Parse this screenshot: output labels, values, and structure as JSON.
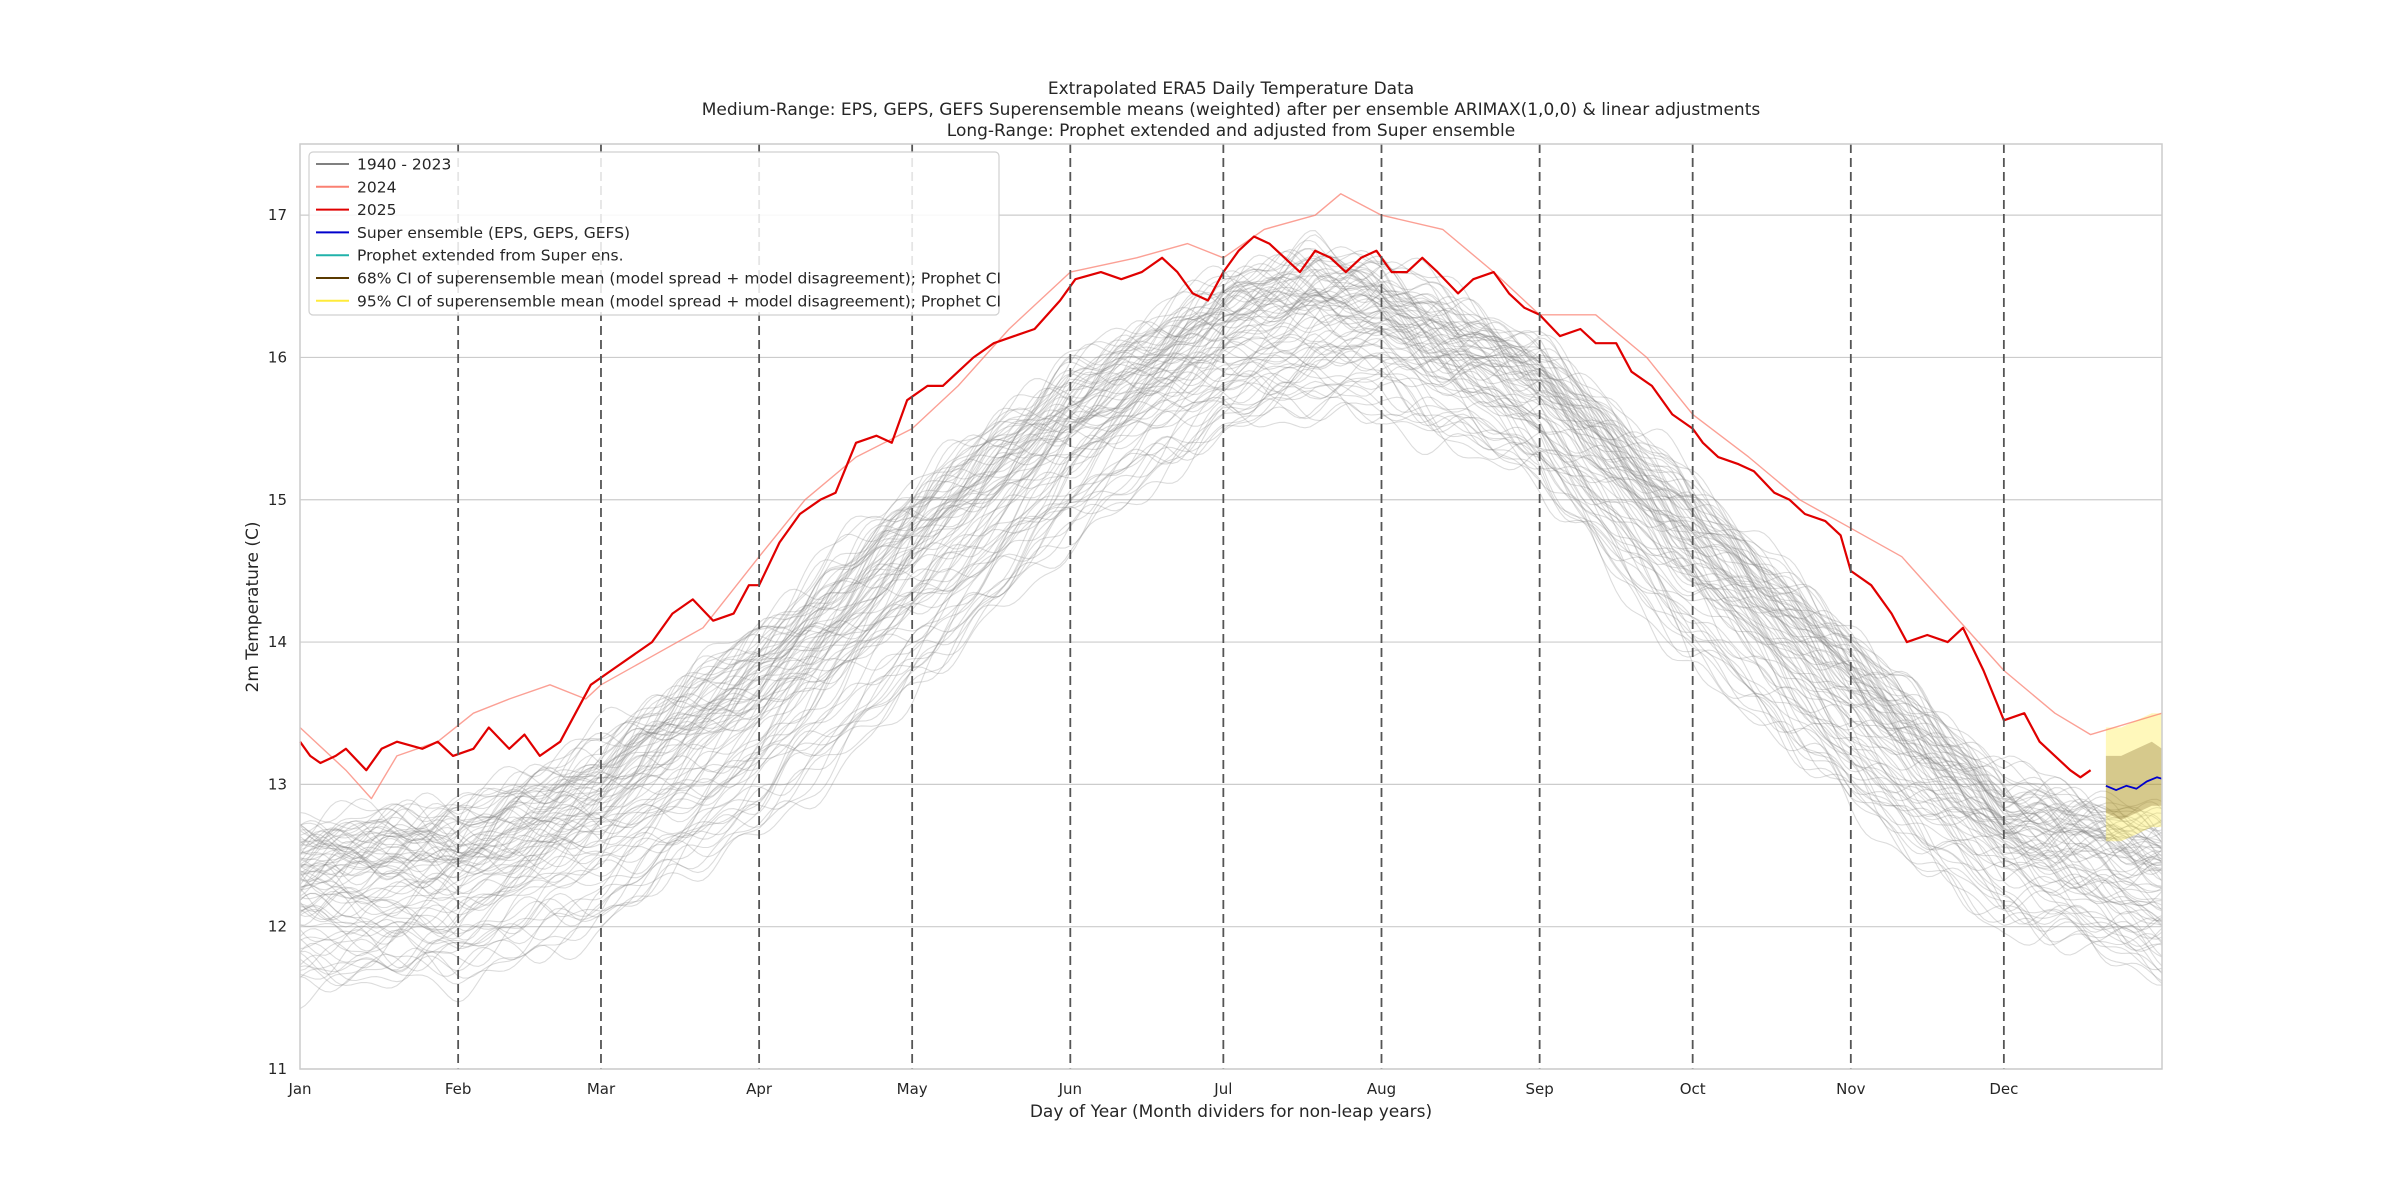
{
  "chart_data": {
    "type": "line",
    "title": [
      "Extrapolated ERA5 Daily Temperature Data",
      "Medium-Range: EPS, GEPS, GEFS Superensemble means (weighted) after per ensemble ARIMAX(1,0,0) & linear adjustments",
      "Long-Range: Prophet extended and adjusted from Super ensemble"
    ],
    "xlabel": "Day of Year (Month dividers for non-leap years)",
    "ylabel": "2m Temperature (C)",
    "xlim": [
      1,
      366
    ],
    "ylim": [
      11,
      17.5
    ],
    "y_ticks": [
      11,
      12,
      13,
      14,
      15,
      16,
      17
    ],
    "x_ticks": [
      {
        "day": 1,
        "label": "Jan"
      },
      {
        "day": 32,
        "label": "Feb"
      },
      {
        "day": 60,
        "label": "Mar"
      },
      {
        "day": 91,
        "label": "Apr"
      },
      {
        "day": 121,
        "label": "May"
      },
      {
        "day": 152,
        "label": "Jun"
      },
      {
        "day": 182,
        "label": "Jul"
      },
      {
        "day": 213,
        "label": "Aug"
      },
      {
        "day": 244,
        "label": "Sep"
      },
      {
        "day": 274,
        "label": "Oct"
      },
      {
        "day": 305,
        "label": "Nov"
      },
      {
        "day": 335,
        "label": "Dec"
      }
    ],
    "month_dividers": [
      32,
      60,
      91,
      121,
      152,
      182,
      213,
      244,
      274,
      305,
      335
    ],
    "grid": "horizontal",
    "legend_position": "top-left",
    "legend": [
      {
        "label": "1940 - 2023",
        "color": "#808080"
      },
      {
        "label": "2024",
        "color": "#fa8072"
      },
      {
        "label": "2025",
        "color": "#e00000"
      },
      {
        "label": "Super ensemble (EPS, GEPS, GEFS)",
        "color": "#0000cc"
      },
      {
        "label": "Prophet extended from Super ens.",
        "color": "#20b2aa"
      },
      {
        "label": "68% CI of superensemble mean (model spread + model disagreement); Prophet CI",
        "color": "#5a3a00"
      },
      {
        "label": "95% CI of superensemble mean (model spread + model disagreement); Prophet CI",
        "color": "#ffeb3b"
      }
    ],
    "historical_range": {
      "label": "1940 - 2023",
      "day": [
        1,
        32,
        60,
        91,
        121,
        152,
        182,
        200,
        213,
        244,
        274,
        305,
        335,
        366
      ],
      "low": [
        11.4,
        11.5,
        11.8,
        12.5,
        13.4,
        14.6,
        15.3,
        15.5,
        15.5,
        15.0,
        13.7,
        12.7,
        11.9,
        11.5
      ],
      "high": [
        12.9,
        13.0,
        13.5,
        14.3,
        15.3,
        16.1,
        16.7,
        16.9,
        16.8,
        16.2,
        15.3,
        14.2,
        13.2,
        12.9
      ]
    },
    "series": [
      {
        "name": "2024",
        "color": "#fa8072",
        "day": [
          1,
          10,
          15,
          20,
          28,
          35,
          42,
          50,
          57,
          60,
          70,
          80,
          91,
          100,
          110,
          121,
          130,
          140,
          152,
          165,
          175,
          182,
          190,
          200,
          205,
          213,
          225,
          235,
          244,
          255,
          265,
          274,
          285,
          295,
          305,
          315,
          325,
          335,
          345,
          352,
          366
        ],
        "value": [
          13.4,
          13.1,
          12.9,
          13.2,
          13.3,
          13.5,
          13.6,
          13.7,
          13.6,
          13.7,
          13.9,
          14.1,
          14.6,
          15.0,
          15.3,
          15.5,
          15.8,
          16.2,
          16.6,
          16.7,
          16.8,
          16.7,
          16.9,
          17.0,
          17.15,
          17.0,
          16.9,
          16.6,
          16.3,
          16.3,
          16.0,
          15.6,
          15.3,
          15.0,
          14.8,
          14.6,
          14.2,
          13.8,
          13.5,
          13.35,
          13.5
        ]
      },
      {
        "name": "2025",
        "color": "#e00000",
        "day": [
          1,
          3,
          5,
          8,
          10,
          14,
          17,
          20,
          25,
          28,
          31,
          35,
          38,
          42,
          45,
          48,
          52,
          55,
          58,
          62,
          66,
          70,
          74,
          78,
          82,
          86,
          89,
          91,
          95,
          99,
          103,
          106,
          110,
          114,
          117,
          120,
          124,
          127,
          130,
          133,
          137,
          141,
          145,
          150,
          153,
          158,
          162,
          166,
          170,
          173,
          176,
          179,
          182,
          185,
          188,
          191,
          194,
          197,
          200,
          203,
          206,
          209,
          212,
          215,
          218,
          221,
          224,
          228,
          231,
          235,
          238,
          241,
          244,
          248,
          252,
          255,
          259,
          262,
          266,
          270,
          274,
          276,
          279,
          283,
          286,
          290,
          293,
          296,
          300,
          303,
          305,
          309,
          313,
          316,
          320,
          324,
          327,
          331,
          335,
          339,
          342,
          345,
          348,
          350,
          352
        ],
        "value": [
          13.3,
          13.2,
          13.15,
          13.2,
          13.25,
          13.1,
          13.25,
          13.3,
          13.25,
          13.3,
          13.2,
          13.25,
          13.4,
          13.25,
          13.35,
          13.2,
          13.3,
          13.5,
          13.7,
          13.8,
          13.9,
          14.0,
          14.2,
          14.3,
          14.15,
          14.2,
          14.4,
          14.4,
          14.7,
          14.9,
          15.0,
          15.05,
          15.4,
          15.45,
          15.4,
          15.7,
          15.8,
          15.8,
          15.9,
          16.0,
          16.1,
          16.15,
          16.2,
          16.4,
          16.55,
          16.6,
          16.55,
          16.6,
          16.7,
          16.6,
          16.45,
          16.4,
          16.6,
          16.75,
          16.85,
          16.8,
          16.7,
          16.6,
          16.75,
          16.7,
          16.6,
          16.7,
          16.75,
          16.6,
          16.6,
          16.7,
          16.6,
          16.45,
          16.55,
          16.6,
          16.45,
          16.35,
          16.3,
          16.15,
          16.2,
          16.1,
          16.1,
          15.9,
          15.8,
          15.6,
          15.5,
          15.4,
          15.3,
          15.25,
          15.2,
          15.05,
          15.0,
          14.9,
          14.85,
          14.75,
          14.5,
          14.4,
          14.2,
          14.0,
          14.05,
          14.0,
          14.1,
          13.8,
          13.45,
          13.5,
          13.3,
          13.2,
          13.1,
          13.05,
          13.1
        ]
      },
      {
        "name": "Super ensemble (EPS, GEPS, GEFS)",
        "color": "#0000cc",
        "day": [
          355,
          357,
          359,
          361,
          363,
          365,
          366
        ],
        "value": [
          12.99,
          12.96,
          12.99,
          12.97,
          13.02,
          13.05,
          13.04
        ]
      }
    ],
    "confidence_intervals": [
      {
        "name": "95% CI",
        "color": "#ffeb3b",
        "day": [
          355,
          358,
          361,
          364,
          366
        ],
        "low": [
          12.6,
          12.6,
          12.65,
          12.7,
          12.7
        ],
        "high": [
          13.4,
          13.4,
          13.45,
          13.5,
          13.5
        ]
      },
      {
        "name": "68% CI",
        "color": "#5a3a00",
        "day": [
          355,
          358,
          361,
          364,
          366
        ],
        "low": [
          12.8,
          12.75,
          12.8,
          12.85,
          12.85
        ],
        "high": [
          13.2,
          13.2,
          13.25,
          13.3,
          13.25
        ]
      }
    ]
  }
}
